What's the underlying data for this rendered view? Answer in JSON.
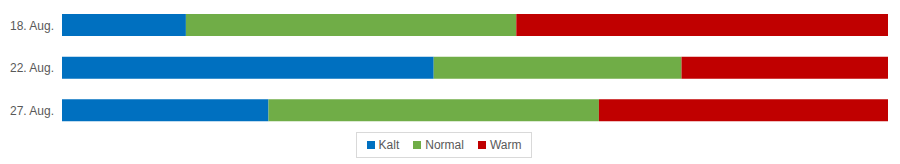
{
  "chart_data": {
    "type": "bar",
    "orientation": "horizontal",
    "stacked": true,
    "categories": [
      "18. Aug.",
      "22. Aug.",
      "27. Aug."
    ],
    "series": [
      {
        "name": "Kalt",
        "color": "#0070c0",
        "values": [
          15,
          45,
          25
        ]
      },
      {
        "name": "Normal",
        "color": "#70ad47",
        "values": [
          40,
          30,
          40
        ]
      },
      {
        "name": "Warm",
        "color": "#c00000",
        "values": [
          45,
          25,
          35
        ]
      }
    ],
    "xlim": [
      0,
      100
    ],
    "tick_labels": "y",
    "legend": "bottom"
  }
}
